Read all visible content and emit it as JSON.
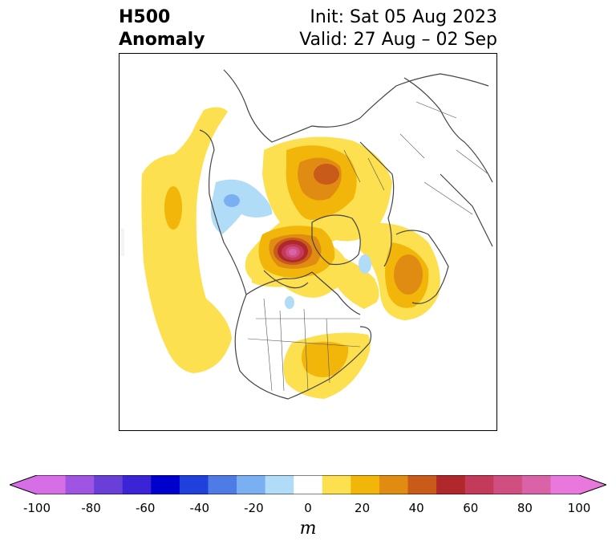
{
  "title": {
    "left_line1": "H500",
    "left_line2": "Anomaly",
    "right_line1": "Init: Sat 05 Aug 2023",
    "right_line2": "Valid: 27 Aug – 02 Sep"
  },
  "colorbar": {
    "tick_labels": [
      "-100",
      "-80",
      "-60",
      "-40",
      "-20",
      "0",
      "20",
      "40",
      "60",
      "80",
      "100"
    ],
    "unit": "m",
    "bins": [
      -100,
      -90,
      -80,
      -70,
      -60,
      -50,
      -40,
      -30,
      -20,
      -10,
      10,
      20,
      30,
      40,
      50,
      60,
      70,
      80,
      90,
      100
    ],
    "colors": [
      "#d66ee6",
      "#9f55e2",
      "#6a3fd8",
      "#3b23d6",
      "#0000cc",
      "#2040dc",
      "#4f7be6",
      "#7ab0f2",
      "#b0dcf8",
      "#ffffff",
      "#fde04f",
      "#f2b60a",
      "#e08c12",
      "#c85a1a",
      "#b0282b",
      "#c43a5a",
      "#d04e80",
      "#da63a8",
      "#e878dc"
    ],
    "under_color": "#d66ee6",
    "over_color": "#e878dc"
  }
}
